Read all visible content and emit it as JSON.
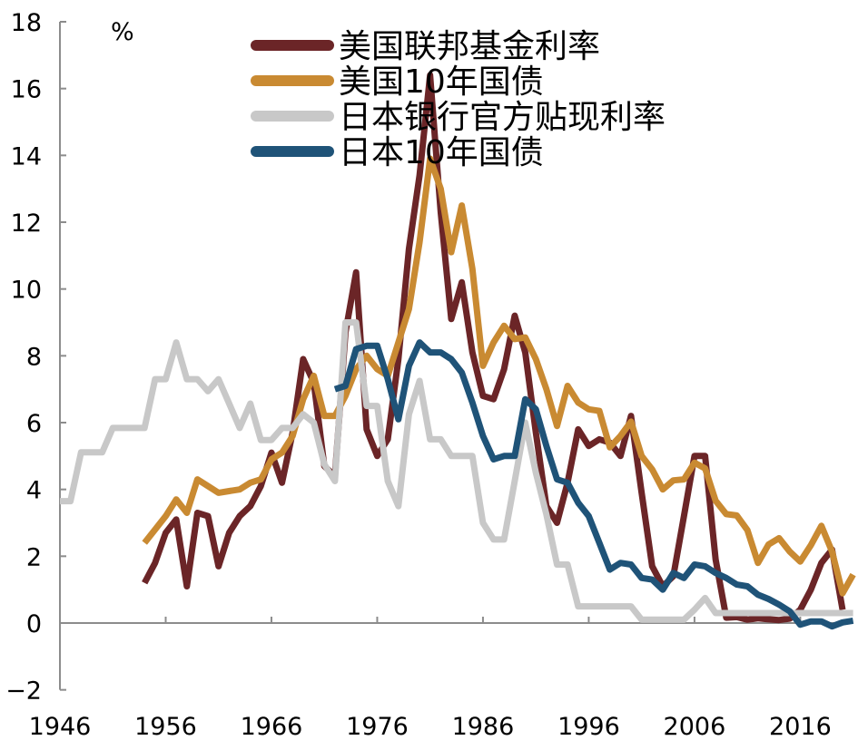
{
  "chart_data": {
    "type": "line",
    "unit_label": "%",
    "xlim": [
      1946,
      2020
    ],
    "ylim": [
      -2,
      18
    ],
    "x_ticks": [
      "1946",
      "1956",
      "1966",
      "1976",
      "1986",
      "1996",
      "2006",
      "2016"
    ],
    "y_ticks": [
      "−2",
      "0",
      "2",
      "4",
      "6",
      "8",
      "10",
      "12",
      "14",
      "16",
      "18"
    ],
    "legend_position": "top-center",
    "series": [
      {
        "name": "美国联邦基金利率",
        "color": "#6b2527",
        "points": [
          [
            1954,
            1.2
          ],
          [
            1955,
            1.8
          ],
          [
            1956,
            2.7
          ],
          [
            1957,
            3.1
          ],
          [
            1958,
            1.1
          ],
          [
            1959,
            3.3
          ],
          [
            1960,
            3.2
          ],
          [
            1961,
            1.7
          ],
          [
            1962,
            2.7
          ],
          [
            1963,
            3.2
          ],
          [
            1964,
            3.5
          ],
          [
            1965,
            4.1
          ],
          [
            1966,
            5.1
          ],
          [
            1967,
            4.2
          ],
          [
            1968,
            5.7
          ],
          [
            1969,
            7.9
          ],
          [
            1970,
            7.2
          ],
          [
            1971,
            4.7
          ],
          [
            1972,
            4.4
          ],
          [
            1973,
            8.7
          ],
          [
            1974,
            10.5
          ],
          [
            1975,
            5.8
          ],
          [
            1976,
            5.0
          ],
          [
            1977,
            5.5
          ],
          [
            1978,
            7.9
          ],
          [
            1979,
            11.2
          ],
          [
            1980,
            13.4
          ],
          [
            1981,
            16.4
          ],
          [
            1982,
            12.3
          ],
          [
            1983,
            9.1
          ],
          [
            1984,
            10.2
          ],
          [
            1985,
            8.1
          ],
          [
            1986,
            6.8
          ],
          [
            1987,
            6.7
          ],
          [
            1988,
            7.6
          ],
          [
            1989,
            9.2
          ],
          [
            1990,
            8.1
          ],
          [
            1991,
            5.7
          ],
          [
            1992,
            3.5
          ],
          [
            1993,
            3.0
          ],
          [
            1994,
            4.2
          ],
          [
            1995,
            5.8
          ],
          [
            1996,
            5.3
          ],
          [
            1997,
            5.5
          ],
          [
            1998,
            5.4
          ],
          [
            1999,
            5.0
          ],
          [
            2000,
            6.2
          ],
          [
            2001,
            3.9
          ],
          [
            2002,
            1.7
          ],
          [
            2003,
            1.1
          ],
          [
            2004,
            1.4
          ],
          [
            2005,
            3.2
          ],
          [
            2006,
            5.0
          ],
          [
            2007,
            5.0
          ],
          [
            2008,
            1.9
          ],
          [
            2009,
            0.16
          ],
          [
            2010,
            0.18
          ],
          [
            2011,
            0.1
          ],
          [
            2012,
            0.14
          ],
          [
            2013,
            0.11
          ],
          [
            2014,
            0.09
          ],
          [
            2015,
            0.13
          ],
          [
            2016,
            0.4
          ],
          [
            2017,
            1.0
          ],
          [
            2018,
            1.8
          ],
          [
            2019,
            2.2
          ],
          [
            2020,
            0.4
          ]
        ]
      },
      {
        "name": "美国10年国债",
        "color": "#c98a32",
        "points": [
          [
            1954,
            2.4
          ],
          [
            1955,
            2.8
          ],
          [
            1956,
            3.2
          ],
          [
            1957,
            3.7
          ],
          [
            1958,
            3.3
          ],
          [
            1959,
            4.3
          ],
          [
            1960,
            4.1
          ],
          [
            1961,
            3.9
          ],
          [
            1962,
            3.95
          ],
          [
            1963,
            4.0
          ],
          [
            1964,
            4.2
          ],
          [
            1965,
            4.3
          ],
          [
            1966,
            4.9
          ],
          [
            1967,
            5.1
          ],
          [
            1968,
            5.6
          ],
          [
            1969,
            6.7
          ],
          [
            1970,
            7.4
          ],
          [
            1971,
            6.2
          ],
          [
            1972,
            6.2
          ],
          [
            1973,
            6.8
          ],
          [
            1974,
            7.6
          ],
          [
            1975,
            8.0
          ],
          [
            1976,
            7.6
          ],
          [
            1977,
            7.4
          ],
          [
            1978,
            8.4
          ],
          [
            1979,
            9.4
          ],
          [
            1980,
            11.4
          ],
          [
            1981,
            13.9
          ],
          [
            1982,
            13.0
          ],
          [
            1983,
            11.1
          ],
          [
            1984,
            12.5
          ],
          [
            1985,
            10.6
          ],
          [
            1986,
            7.7
          ],
          [
            1987,
            8.4
          ],
          [
            1988,
            8.9
          ],
          [
            1989,
            8.5
          ],
          [
            1990,
            8.55
          ],
          [
            1991,
            7.9
          ],
          [
            1992,
            7.0
          ],
          [
            1993,
            5.9
          ],
          [
            1994,
            7.1
          ],
          [
            1995,
            6.6
          ],
          [
            1996,
            6.4
          ],
          [
            1997,
            6.35
          ],
          [
            1998,
            5.26
          ],
          [
            1999,
            5.6
          ],
          [
            2000,
            6.03
          ],
          [
            2001,
            5.0
          ],
          [
            2002,
            4.6
          ],
          [
            2003,
            4.0
          ],
          [
            2004,
            4.27
          ],
          [
            2005,
            4.3
          ],
          [
            2006,
            4.8
          ],
          [
            2007,
            4.63
          ],
          [
            2008,
            3.66
          ],
          [
            2009,
            3.26
          ],
          [
            2010,
            3.22
          ],
          [
            2011,
            2.78
          ],
          [
            2012,
            1.8
          ],
          [
            2013,
            2.35
          ],
          [
            2014,
            2.54
          ],
          [
            2015,
            2.14
          ],
          [
            2016,
            1.84
          ],
          [
            2017,
            2.33
          ],
          [
            2018,
            2.91
          ],
          [
            2019,
            2.14
          ],
          [
            2020,
            0.89
          ],
          [
            2021,
            1.45
          ]
        ]
      },
      {
        "name": "日本银行官方贴现利率",
        "color": "#c8c8c8",
        "points": [
          [
            1946,
            3.65
          ],
          [
            1947,
            3.65
          ],
          [
            1948,
            5.11
          ],
          [
            1949,
            5.11
          ],
          [
            1950,
            5.11
          ],
          [
            1951,
            5.84
          ],
          [
            1952,
            5.84
          ],
          [
            1953,
            5.84
          ],
          [
            1954,
            5.84
          ],
          [
            1955,
            7.3
          ],
          [
            1956,
            7.3
          ],
          [
            1957,
            8.4
          ],
          [
            1958,
            7.3
          ],
          [
            1959,
            7.3
          ],
          [
            1960,
            6.94
          ],
          [
            1961,
            7.3
          ],
          [
            1962,
            6.57
          ],
          [
            1963,
            5.84
          ],
          [
            1964,
            6.57
          ],
          [
            1965,
            5.48
          ],
          [
            1966,
            5.48
          ],
          [
            1967,
            5.84
          ],
          [
            1968,
            5.84
          ],
          [
            1969,
            6.25
          ],
          [
            1970,
            6.0
          ],
          [
            1971,
            4.75
          ],
          [
            1972,
            4.25
          ],
          [
            1973,
            9.0
          ],
          [
            1974,
            9.0
          ],
          [
            1975,
            6.5
          ],
          [
            1976,
            6.5
          ],
          [
            1977,
            4.25
          ],
          [
            1978,
            3.5
          ],
          [
            1979,
            6.25
          ],
          [
            1980,
            7.25
          ],
          [
            1981,
            5.5
          ],
          [
            1982,
            5.5
          ],
          [
            1983,
            5.0
          ],
          [
            1984,
            5.0
          ],
          [
            1985,
            5.0
          ],
          [
            1986,
            3.0
          ],
          [
            1987,
            2.5
          ],
          [
            1988,
            2.5
          ],
          [
            1989,
            4.25
          ],
          [
            1990,
            6.0
          ],
          [
            1991,
            4.5
          ],
          [
            1992,
            3.25
          ],
          [
            1993,
            1.75
          ],
          [
            1994,
            1.75
          ],
          [
            1995,
            0.5
          ],
          [
            1996,
            0.5
          ],
          [
            1997,
            0.5
          ],
          [
            1998,
            0.5
          ],
          [
            1999,
            0.5
          ],
          [
            2000,
            0.5
          ],
          [
            2001,
            0.1
          ],
          [
            2002,
            0.1
          ],
          [
            2003,
            0.1
          ],
          [
            2004,
            0.1
          ],
          [
            2005,
            0.1
          ],
          [
            2006,
            0.4
          ],
          [
            2007,
            0.75
          ],
          [
            2008,
            0.3
          ],
          [
            2009,
            0.3
          ],
          [
            2010,
            0.3
          ],
          [
            2011,
            0.3
          ],
          [
            2012,
            0.3
          ],
          [
            2013,
            0.3
          ],
          [
            2014,
            0.3
          ],
          [
            2015,
            0.3
          ],
          [
            2016,
            0.3
          ],
          [
            2017,
            0.3
          ],
          [
            2018,
            0.3
          ],
          [
            2019,
            0.3
          ],
          [
            2020,
            0.3
          ],
          [
            2021,
            0.3
          ]
        ]
      },
      {
        "name": "日本10年国债",
        "color": "#1f5378",
        "points": [
          [
            1972,
            7.0
          ],
          [
            1973,
            7.1
          ],
          [
            1974,
            8.2
          ],
          [
            1975,
            8.3
          ],
          [
            1976,
            8.3
          ],
          [
            1977,
            7.3
          ],
          [
            1978,
            6.1
          ],
          [
            1979,
            7.7
          ],
          [
            1980,
            8.4
          ],
          [
            1981,
            8.1
          ],
          [
            1982,
            8.1
          ],
          [
            1983,
            7.9
          ],
          [
            1984,
            7.5
          ],
          [
            1985,
            6.6
          ],
          [
            1986,
            5.6
          ],
          [
            1987,
            4.9
          ],
          [
            1988,
            5.0
          ],
          [
            1989,
            5.0
          ],
          [
            1990,
            6.7
          ],
          [
            1991,
            6.4
          ],
          [
            1992,
            5.3
          ],
          [
            1993,
            4.3
          ],
          [
            1994,
            4.2
          ],
          [
            1995,
            3.6
          ],
          [
            1996,
            3.2
          ],
          [
            1997,
            2.4
          ],
          [
            1998,
            1.6
          ],
          [
            1999,
            1.8
          ],
          [
            2000,
            1.75
          ],
          [
            2001,
            1.35
          ],
          [
            2002,
            1.3
          ],
          [
            2003,
            1.0
          ],
          [
            2004,
            1.5
          ],
          [
            2005,
            1.35
          ],
          [
            2006,
            1.75
          ],
          [
            2007,
            1.7
          ],
          [
            2008,
            1.5
          ],
          [
            2009,
            1.35
          ],
          [
            2010,
            1.15
          ],
          [
            2011,
            1.1
          ],
          [
            2012,
            0.85
          ],
          [
            2013,
            0.72
          ],
          [
            2014,
            0.55
          ],
          [
            2015,
            0.35
          ],
          [
            2016,
            -0.05
          ],
          [
            2017,
            0.05
          ],
          [
            2018,
            0.05
          ],
          [
            2019,
            -0.1
          ],
          [
            2020,
            0.02
          ],
          [
            2021,
            0.07
          ]
        ]
      }
    ]
  }
}
